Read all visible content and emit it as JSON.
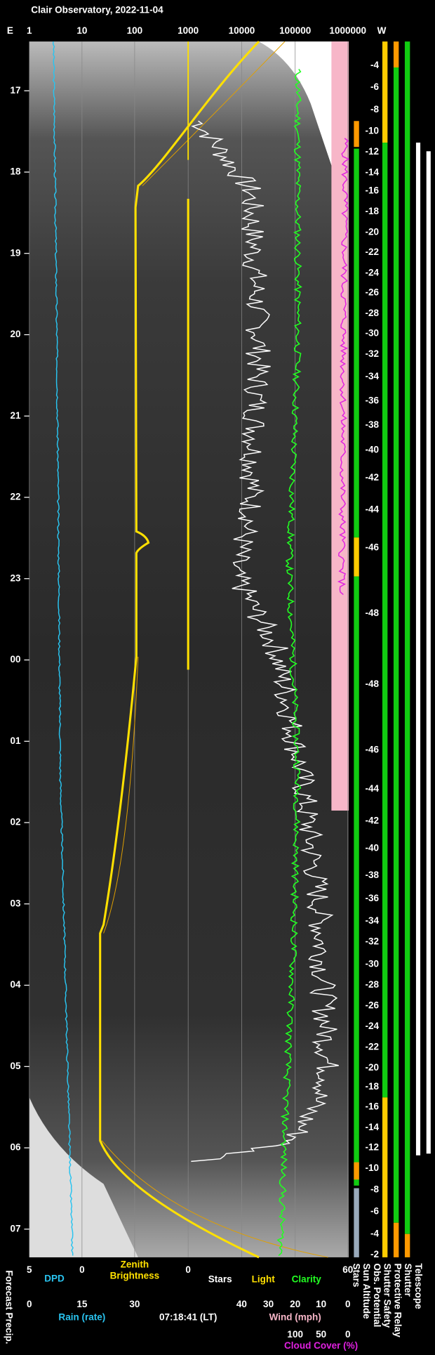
{
  "title": "Clair Observatory, 2022-11-04",
  "top_axis": {
    "left": "E",
    "right": "W",
    "labels": [
      "1",
      "10",
      "100",
      "1000",
      "10000",
      "100000",
      "1000000"
    ]
  },
  "time_labels": [
    "17",
    "18",
    "19",
    "20",
    "21",
    "22",
    "23",
    "00",
    "01",
    "02",
    "03",
    "04",
    "05",
    "06",
    "07"
  ],
  "altitude_labels": [
    "-4",
    "-6",
    "-8",
    "-10",
    "-12",
    "-14",
    "-16",
    "-18",
    "-20",
    "-22",
    "-24",
    "-26",
    "-28",
    "-30",
    "-32",
    "-34",
    "-36",
    "-38",
    "-40",
    "-42",
    "-44",
    "-46",
    "-48",
    "-48",
    "-46",
    "-44",
    "-42",
    "-40",
    "-38",
    "-36",
    "-34",
    "-32",
    "-30",
    "-28",
    "-26",
    "-24",
    "-22",
    "-20",
    "-18",
    "-16",
    "-14",
    "-12",
    "-10",
    "-8",
    "-6",
    "-4",
    "-2"
  ],
  "bottom_axis": {
    "row1": {
      "ticks": [
        "5",
        "0",
        "0",
        "60"
      ],
      "dpd": "DPD",
      "zenith": [
        "Zenith",
        "Brightness"
      ],
      "stars": "Stars",
      "light": "Light",
      "clarity": "Clarity"
    },
    "row2": {
      "rain_ticks": [
        "0",
        "15",
        "30"
      ],
      "rain": "Rain (rate)",
      "time": "07:18:41 (LT)",
      "wind_ticks": [
        "40",
        "30",
        "20",
        "10",
        "0"
      ],
      "wind": "Wind (mph)"
    },
    "row3": {
      "cloud_ticks": [
        "100",
        "50",
        "0"
      ],
      "cloud": "Cloud Cover (%)"
    }
  },
  "status_labels": [
    "Stars",
    "Sun Altitude",
    "Obs. Potential",
    "Shutter Safety",
    "Protective Relay",
    "Shutter",
    "Telescope"
  ],
  "side_label": "Forecast Precip."
}
